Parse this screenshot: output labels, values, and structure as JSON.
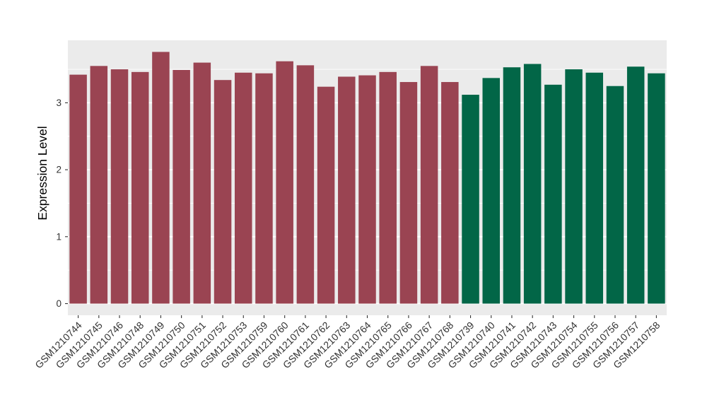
{
  "figure": {
    "background": "#FFFFFF",
    "panel_background": "#EBEBEB",
    "grid_color": "#FFFFFF",
    "axis_text_color": "#333333",
    "axis_title_color": "#000000"
  },
  "chart_data": {
    "type": "bar",
    "title": "",
    "xlabel": "",
    "ylabel": "Expression Level",
    "ylim": [
      0,
      3.93
    ],
    "yticks": [
      0,
      1,
      2,
      3
    ],
    "grid": "white major gridlines at integers and minor gridlines at halves on gray panel",
    "legend": "none",
    "x_tick_rotation_deg": 45,
    "series": [
      {
        "name": "maroon-group",
        "color": "#9A4452",
        "categories": [
          "GSM1210744",
          "GSM1210745",
          "GSM1210746",
          "GSM1210748",
          "GSM1210749",
          "GSM1210750",
          "GSM1210751",
          "GSM1210752",
          "GSM1210753",
          "GSM1210759",
          "GSM1210760",
          "GSM1210761",
          "GSM1210762",
          "GSM1210763",
          "GSM1210764",
          "GSM1210765",
          "GSM1210766",
          "GSM1210767",
          "GSM1210768"
        ],
        "values": [
          3.42,
          3.55,
          3.5,
          3.46,
          3.76,
          3.49,
          3.6,
          3.34,
          3.45,
          3.44,
          3.62,
          3.56,
          3.24,
          3.39,
          3.41,
          3.46,
          3.31,
          3.55,
          3.31
        ]
      },
      {
        "name": "green-group",
        "color": "#026647",
        "categories": [
          "GSM1210739",
          "GSM1210740",
          "GSM1210741",
          "GSM1210742",
          "GSM1210743",
          "GSM1210754",
          "GSM1210755",
          "GSM1210756",
          "GSM1210757",
          "GSM1210758"
        ],
        "values": [
          3.12,
          3.37,
          3.53,
          3.58,
          3.27,
          3.5,
          3.45,
          3.25,
          3.54,
          3.44
        ]
      }
    ]
  }
}
